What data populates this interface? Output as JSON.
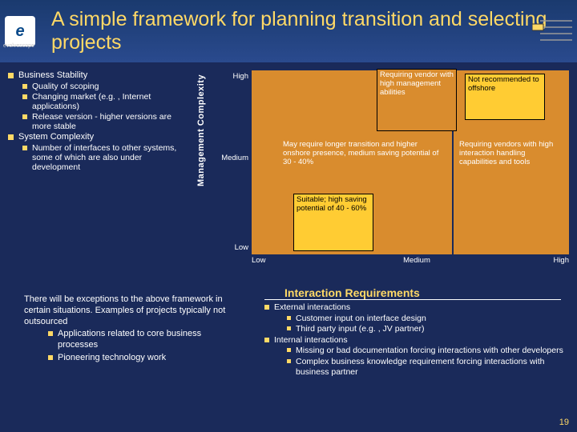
{
  "header": {
    "logo_glyph": "e",
    "logo_sub": "evolvescope",
    "title": "A simple framework  for planning transition and selecting projects"
  },
  "left": {
    "items": [
      {
        "level": 1,
        "text": "Business Stability"
      },
      {
        "level": 2,
        "text": "Quality of scoping"
      },
      {
        "level": 2,
        "text": "Changing market (e.g. , Internet applications)"
      },
      {
        "level": 2,
        "text": "Release version - higher versions are more stable"
      },
      {
        "level": 1,
        "text": "System Complexity"
      },
      {
        "level": 2,
        "text": "Number of interfaces to other systems, some of which are also under development"
      }
    ]
  },
  "chart": {
    "y_label": "Management Complexity",
    "y_ticks": [
      "High",
      "Medium",
      "Low"
    ],
    "x_ticks": [
      "Low",
      "Medium",
      "High"
    ],
    "x_title": "Interaction Requirements",
    "cells": {
      "topleft": "Requiring vendor with high management abilities",
      "topright": "Not recommended to offshore",
      "midwide": "May require longer transition and higher onshore presence, medium saving potential of 30 - 40%",
      "midright": "Requiring vendors with high interaction handling capabilities and tools",
      "botleft": "Suitable; high saving potential of 40 - 60%"
    }
  },
  "footer_left": {
    "intro": "There will be exceptions to the above framework in certain situations.  Examples of projects typically not outsourced",
    "bullets": [
      "Applications related to core business processes",
      "Pioneering technology work"
    ]
  },
  "footer_right": {
    "items": [
      {
        "level": 1,
        "text": "External interactions"
      },
      {
        "level": 2,
        "text": "Customer input on interface design"
      },
      {
        "level": 2,
        "text": "Third party input (e.g. , JV partner)"
      },
      {
        "level": 1,
        "text": "Internal interactions"
      },
      {
        "level": 2,
        "text": "Missing or bad documentation forcing interactions with other developers"
      },
      {
        "level": 2,
        "text": "Complex business knowledge requirement forcing interactions with business partner"
      }
    ]
  },
  "page_number": "19",
  "colors": {
    "bg": "#1a2a5a",
    "accent": "#ffd966",
    "orange": "#d98c2e",
    "yellow": "#ffcc33"
  }
}
